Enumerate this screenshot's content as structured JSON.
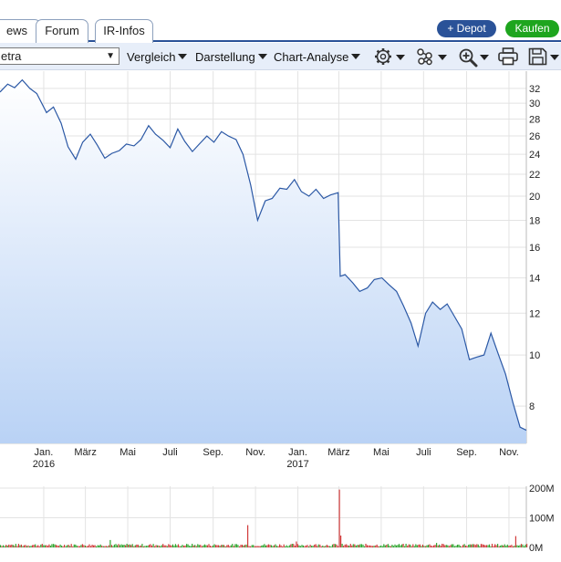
{
  "tabs": [
    {
      "label": "ews"
    },
    {
      "label": "Forum"
    },
    {
      "label": "IR-Infos"
    }
  ],
  "buttons": {
    "depot_label": "+ Depot",
    "kaufen_label": "Kaufen"
  },
  "toolbar": {
    "exchange_select": "etra",
    "vergleich_label": "Vergleich",
    "darstellung_label": "Darstellung",
    "analyse_label": "Chart-Analyse",
    "icons": [
      "gear-icon",
      "network-icon",
      "zoom-in-icon",
      "print-icon",
      "save-icon"
    ]
  },
  "colors": {
    "line": "#2b58a5",
    "depot_button": "#2a5298",
    "kaufen_button": "#1ea51e",
    "area_top": "#ffffff",
    "area_bottom": "#b9d2f5",
    "volume_up": "#2ea52e",
    "volume_down": "#d13a3a"
  },
  "chart_data": [
    {
      "type": "line",
      "scale": "log",
      "grid": true,
      "y_axis_side": "right",
      "ylim": [
        6.8,
        34.5
      ],
      "y_ticks": [
        32,
        30,
        28,
        26,
        24,
        22,
        20,
        18,
        16,
        14,
        12,
        10,
        8
      ],
      "x_ticks": [
        {
          "date": "2016-01-01",
          "label": "Jan.",
          "sublabel": "2016"
        },
        {
          "date": "2016-03-01",
          "label": "März",
          "sublabel": ""
        },
        {
          "date": "2016-05-01",
          "label": "Mai",
          "sublabel": ""
        },
        {
          "date": "2016-07-01",
          "label": "Juli",
          "sublabel": ""
        },
        {
          "date": "2016-09-01",
          "label": "Sep.",
          "sublabel": ""
        },
        {
          "date": "2016-11-01",
          "label": "Nov.",
          "sublabel": ""
        },
        {
          "date": "2017-01-01",
          "label": "Jan.",
          "sublabel": "2017"
        },
        {
          "date": "2017-03-01",
          "label": "März",
          "sublabel": ""
        },
        {
          "date": "2017-05-01",
          "label": "Mai",
          "sublabel": ""
        },
        {
          "date": "2017-07-01",
          "label": "Juli",
          "sublabel": ""
        },
        {
          "date": "2017-09-01",
          "label": "Sep.",
          "sublabel": ""
        },
        {
          "date": "2017-11-01",
          "label": "Nov.",
          "sublabel": ""
        }
      ],
      "xlim": [
        "2015-10-30",
        "2017-11-26"
      ],
      "series": [
        {
          "x": [
            "2015-10-30",
            "2015-11-10",
            "2015-11-20",
            "2015-12-01",
            "2015-12-12",
            "2015-12-22",
            "2016-01-05",
            "2016-01-15",
            "2016-01-26",
            "2016-02-05",
            "2016-02-16",
            "2016-02-26",
            "2016-03-08",
            "2016-03-18",
            "2016-03-29",
            "2016-04-08",
            "2016-04-19",
            "2016-04-29",
            "2016-05-10",
            "2016-05-20",
            "2016-05-31",
            "2016-06-10",
            "2016-06-21",
            "2016-07-01",
            "2016-07-12",
            "2016-07-22",
            "2016-08-02",
            "2016-08-12",
            "2016-08-23",
            "2016-09-02",
            "2016-09-13",
            "2016-09-23",
            "2016-10-04",
            "2016-10-14",
            "2016-10-25",
            "2016-11-04",
            "2016-11-15",
            "2016-11-25",
            "2016-12-06",
            "2016-12-16",
            "2016-12-27",
            "2017-01-06",
            "2017-01-17",
            "2017-01-27",
            "2017-02-07",
            "2017-02-17",
            "2017-02-28",
            "2017-03-03",
            "2017-03-10",
            "2017-03-21",
            "2017-03-31",
            "2017-04-11",
            "2017-04-21",
            "2017-05-02",
            "2017-05-12",
            "2017-05-23",
            "2017-06-02",
            "2017-06-13",
            "2017-06-23",
            "2017-07-04",
            "2017-07-14",
            "2017-07-25",
            "2017-08-04",
            "2017-08-15",
            "2017-08-25",
            "2017-09-05",
            "2017-09-15",
            "2017-09-26",
            "2017-10-06",
            "2017-10-17",
            "2017-10-27",
            "2017-11-07",
            "2017-11-17",
            "2017-11-26"
          ],
          "values": [
            31.5,
            32.6,
            32.1,
            33.2,
            32.0,
            31.3,
            28.8,
            29.5,
            27.5,
            24.8,
            23.5,
            25.3,
            26.2,
            25.0,
            23.6,
            24.1,
            24.4,
            25.1,
            24.9,
            25.6,
            27.2,
            26.2,
            25.5,
            24.7,
            26.8,
            25.4,
            24.3,
            25.1,
            26.0,
            25.3,
            26.5,
            26.0,
            25.6,
            24.0,
            21.0,
            18.0,
            19.6,
            19.8,
            20.7,
            20.6,
            21.5,
            20.4,
            20.0,
            20.6,
            19.8,
            20.1,
            20.3,
            14.1,
            14.2,
            13.7,
            13.2,
            13.4,
            13.9,
            14.0,
            13.6,
            13.2,
            12.4,
            11.5,
            10.4,
            12.0,
            12.6,
            12.2,
            12.5,
            11.8,
            11.2,
            9.8,
            9.9,
            10.0,
            11.0,
            10.0,
            9.2,
            8.1,
            7.3,
            7.2
          ]
        }
      ]
    },
    {
      "type": "bar",
      "ylim": [
        0,
        200
      ],
      "y_ticks": [
        {
          "value": 200,
          "label": "200M"
        },
        {
          "value": 100,
          "label": "100M"
        },
        {
          "value": 0,
          "label": "0M"
        }
      ],
      "volume_spikes": [
        {
          "date": "2016-04-05",
          "value": 25,
          "direction": "up"
        },
        {
          "date": "2016-10-20",
          "value": 75,
          "direction": "down"
        },
        {
          "date": "2016-12-30",
          "value": 20,
          "direction": "down"
        },
        {
          "date": "2017-03-02",
          "value": 195,
          "direction": "down"
        },
        {
          "date": "2017-03-04",
          "value": 40,
          "direction": "down"
        },
        {
          "date": "2017-07-20",
          "value": 15,
          "direction": "up"
        },
        {
          "date": "2017-11-10",
          "value": 38,
          "direction": "down"
        }
      ],
      "base_volume": 10
    }
  ]
}
